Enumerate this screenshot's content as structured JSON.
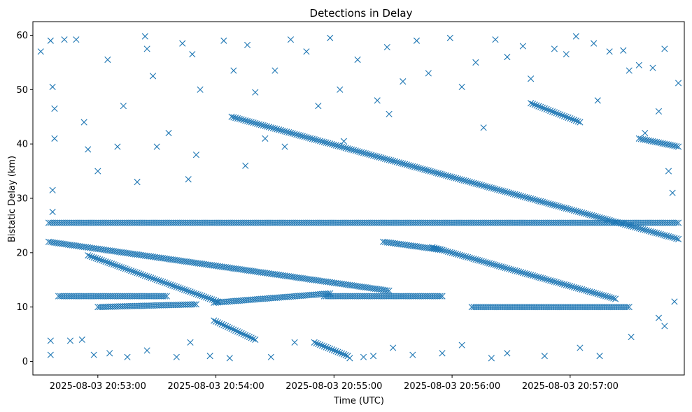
{
  "chart_data": {
    "type": "scatter",
    "title": "Detections in Delay",
    "xlabel": "Time (UTC)",
    "ylabel": "Bistatic Delay (km)",
    "x_time_range": [
      "2025-08-03 20:52:27",
      "2025-08-03 20:57:58"
    ],
    "ylim": [
      -2.5,
      62.5
    ],
    "x_ticks": [
      {
        "value": "2025-08-03 20:53:00",
        "label": "2025-08-03 20:53:00"
      },
      {
        "value": "2025-08-03 20:54:00",
        "label": "2025-08-03 20:54:00"
      },
      {
        "value": "2025-08-03 20:55:00",
        "label": "2025-08-03 20:55:00"
      },
      {
        "value": "2025-08-03 20:56:00",
        "label": "2025-08-03 20:56:00"
      },
      {
        "value": "2025-08-03 20:57:00",
        "label": "2025-08-03 20:57:00"
      }
    ],
    "y_ticks": [
      0,
      10,
      20,
      30,
      40,
      50,
      60
    ],
    "grid": false,
    "legend": "none",
    "marker": "x",
    "color": "#1f77b4",
    "series_time_span": [
      "2025-08-03 20:52:30",
      "2025-08-03 20:57:55"
    ],
    "points_sampling_seconds": 1,
    "tracks": [
      {
        "start": [
          "2025-08-03 20:54:08",
          45.0
        ],
        "end": [
          "2025-08-03 20:57:55",
          22.5
        ]
      },
      {
        "start": [
          "2025-08-03 20:52:35",
          22.0
        ],
        "end": [
          "2025-08-03 20:55:28",
          13.0
        ]
      },
      {
        "start": [
          "2025-08-03 20:52:55",
          19.5
        ],
        "end": [
          "2025-08-03 20:54:01",
          11.0
        ]
      },
      {
        "start": [
          "2025-08-03 20:53:59",
          10.8
        ],
        "end": [
          "2025-08-03 20:54:58",
          12.5
        ]
      },
      {
        "start": [
          "2025-08-03 20:53:59",
          7.5
        ],
        "end": [
          "2025-08-03 20:54:20",
          4.0
        ]
      },
      {
        "start": [
          "2025-08-03 20:54:50",
          3.5
        ],
        "end": [
          "2025-08-03 20:55:07",
          1.0
        ]
      },
      {
        "start": [
          "2025-08-03 20:55:50",
          21.0
        ],
        "end": [
          "2025-08-03 20:57:23",
          11.5
        ]
      },
      {
        "start": [
          "2025-08-03 20:55:25",
          22.0
        ],
        "end": [
          "2025-08-03 20:55:55",
          20.5
        ]
      },
      {
        "start": [
          "2025-08-03 20:56:40",
          47.5
        ],
        "end": [
          "2025-08-03 20:57:05",
          44.0
        ]
      },
      {
        "start": [
          "2025-08-03 20:57:35",
          41.0
        ],
        "end": [
          "2025-08-03 20:57:55",
          39.5
        ]
      },
      {
        "start": [
          "2025-08-03 20:52:35",
          25.5
        ],
        "end": [
          "2025-08-03 20:57:55",
          25.5
        ]
      },
      {
        "start": [
          "2025-08-03 20:52:40",
          12.0
        ],
        "end": [
          "2025-08-03 20:53:35",
          12.0
        ]
      },
      {
        "start": [
          "2025-08-03 20:54:55",
          12.0
        ],
        "end": [
          "2025-08-03 20:55:55",
          12.0
        ]
      },
      {
        "start": [
          "2025-08-03 20:56:10",
          10.0
        ],
        "end": [
          "2025-08-03 20:57:30",
          10.0
        ]
      },
      {
        "start": [
          "2025-08-03 20:53:00",
          10.0
        ],
        "end": [
          "2025-08-03 20:53:50",
          10.5
        ]
      }
    ],
    "scatter_points": [
      [
        "2025-08-03 20:52:31",
        57.0
      ],
      [
        "2025-08-03 20:52:36",
        59.0
      ],
      [
        "2025-08-03 20:52:43",
        59.2
      ],
      [
        "2025-08-03 20:52:49",
        59.2
      ],
      [
        "2025-08-03 20:52:37",
        50.5
      ],
      [
        "2025-08-03 20:52:38",
        46.5
      ],
      [
        "2025-08-03 20:52:38",
        41.0
      ],
      [
        "2025-08-03 20:52:37",
        31.5
      ],
      [
        "2025-08-03 20:52:37",
        27.5
      ],
      [
        "2025-08-03 20:52:36",
        3.8
      ],
      [
        "2025-08-03 20:52:36",
        1.2
      ],
      [
        "2025-08-03 20:52:46",
        3.8
      ],
      [
        "2025-08-03 20:52:53",
        44.0
      ],
      [
        "2025-08-03 20:52:55",
        39.0
      ],
      [
        "2025-08-03 20:53:00",
        35.0
      ],
      [
        "2025-08-03 20:53:05",
        55.5
      ],
      [
        "2025-08-03 20:53:13",
        47.0
      ],
      [
        "2025-08-03 20:53:10",
        39.5
      ],
      [
        "2025-08-03 20:53:20",
        33.0
      ],
      [
        "2025-08-03 20:53:24",
        59.8
      ],
      [
        "2025-08-03 20:53:25",
        57.5
      ],
      [
        "2025-08-03 20:53:28",
        52.5
      ],
      [
        "2025-08-03 20:53:30",
        39.5
      ],
      [
        "2025-08-03 20:53:36",
        42.0
      ],
      [
        "2025-08-03 20:53:43",
        58.5
      ],
      [
        "2025-08-03 20:53:48",
        56.5
      ],
      [
        "2025-08-03 20:53:50",
        38.0
      ],
      [
        "2025-08-03 20:53:46",
        33.5
      ],
      [
        "2025-08-03 20:53:52",
        50.0
      ],
      [
        "2025-08-03 20:54:04",
        59.0
      ],
      [
        "2025-08-03 20:54:09",
        53.5
      ],
      [
        "2025-08-03 20:54:16",
        58.2
      ],
      [
        "2025-08-03 20:54:20",
        49.5
      ],
      [
        "2025-08-03 20:54:15",
        36.0
      ],
      [
        "2025-08-03 20:54:25",
        41.0
      ],
      [
        "2025-08-03 20:54:30",
        53.5
      ],
      [
        "2025-08-03 20:54:35",
        39.5
      ],
      [
        "2025-08-03 20:54:38",
        59.2
      ],
      [
        "2025-08-03 20:54:46",
        57.0
      ],
      [
        "2025-08-03 20:54:52",
        47.0
      ],
      [
        "2025-08-03 20:54:58",
        59.5
      ],
      [
        "2025-08-03 20:55:03",
        50.0
      ],
      [
        "2025-08-03 20:55:05",
        40.5
      ],
      [
        "2025-08-03 20:55:12",
        55.5
      ],
      [
        "2025-08-03 20:55:22",
        48.0
      ],
      [
        "2025-08-03 20:55:27",
        57.8
      ],
      [
        "2025-08-03 20:55:28",
        45.5
      ],
      [
        "2025-08-03 20:55:35",
        51.5
      ],
      [
        "2025-08-03 20:55:42",
        59.0
      ],
      [
        "2025-08-03 20:55:48",
        53.0
      ],
      [
        "2025-08-03 20:55:59",
        59.5
      ],
      [
        "2025-08-03 20:56:05",
        50.5
      ],
      [
        "2025-08-03 20:56:12",
        55.0
      ],
      [
        "2025-08-03 20:56:16",
        43.0
      ],
      [
        "2025-08-03 20:56:22",
        59.2
      ],
      [
        "2025-08-03 20:56:28",
        56.0
      ],
      [
        "2025-08-03 20:56:36",
        58.0
      ],
      [
        "2025-08-03 20:56:40",
        52.0
      ],
      [
        "2025-08-03 20:56:52",
        57.5
      ],
      [
        "2025-08-03 20:56:58",
        56.5
      ],
      [
        "2025-08-03 20:57:03",
        59.8
      ],
      [
        "2025-08-03 20:57:12",
        58.5
      ],
      [
        "2025-08-03 20:57:14",
        48.0
      ],
      [
        "2025-08-03 20:57:20",
        57.0
      ],
      [
        "2025-08-03 20:57:27",
        57.2
      ],
      [
        "2025-08-03 20:57:30",
        53.5
      ],
      [
        "2025-08-03 20:57:35",
        54.5
      ],
      [
        "2025-08-03 20:57:42",
        54.0
      ],
      [
        "2025-08-03 20:57:48",
        57.5
      ],
      [
        "2025-08-03 20:57:55",
        51.2
      ],
      [
        "2025-08-03 20:57:45",
        46.0
      ],
      [
        "2025-08-03 20:57:38",
        42.0
      ],
      [
        "2025-08-03 20:57:50",
        35.0
      ],
      [
        "2025-08-03 20:57:52",
        31.0
      ],
      [
        "2025-08-03 20:57:53",
        11.0
      ],
      [
        "2025-08-03 20:57:48",
        6.5
      ],
      [
        "2025-08-03 20:57:45",
        8.0
      ],
      [
        "2025-08-03 20:57:31",
        4.5
      ],
      [
        "2025-08-03 20:57:15",
        1.0
      ],
      [
        "2025-08-03 20:57:05",
        2.5
      ],
      [
        "2025-08-03 20:56:47",
        1.0
      ],
      [
        "2025-08-03 20:56:28",
        1.5
      ],
      [
        "2025-08-03 20:56:20",
        0.6
      ],
      [
        "2025-08-03 20:56:05",
        3.0
      ],
      [
        "2025-08-03 20:55:55",
        1.5
      ],
      [
        "2025-08-03 20:55:40",
        1.2
      ],
      [
        "2025-08-03 20:55:30",
        2.5
      ],
      [
        "2025-08-03 20:55:20",
        1.0
      ],
      [
        "2025-08-03 20:55:15",
        0.8
      ],
      [
        "2025-08-03 20:55:08",
        0.6
      ],
      [
        "2025-08-03 20:54:40",
        3.5
      ],
      [
        "2025-08-03 20:54:28",
        0.8
      ],
      [
        "2025-08-03 20:54:07",
        0.6
      ],
      [
        "2025-08-03 20:53:57",
        1.0
      ],
      [
        "2025-08-03 20:53:47",
        3.5
      ],
      [
        "2025-08-03 20:53:40",
        0.8
      ],
      [
        "2025-08-03 20:53:25",
        2.0
      ],
      [
        "2025-08-03 20:53:15",
        0.8
      ],
      [
        "2025-08-03 20:53:06",
        1.5
      ],
      [
        "2025-08-03 20:52:58",
        1.2
      ],
      [
        "2025-08-03 20:52:52",
        4.0
      ]
    ]
  }
}
